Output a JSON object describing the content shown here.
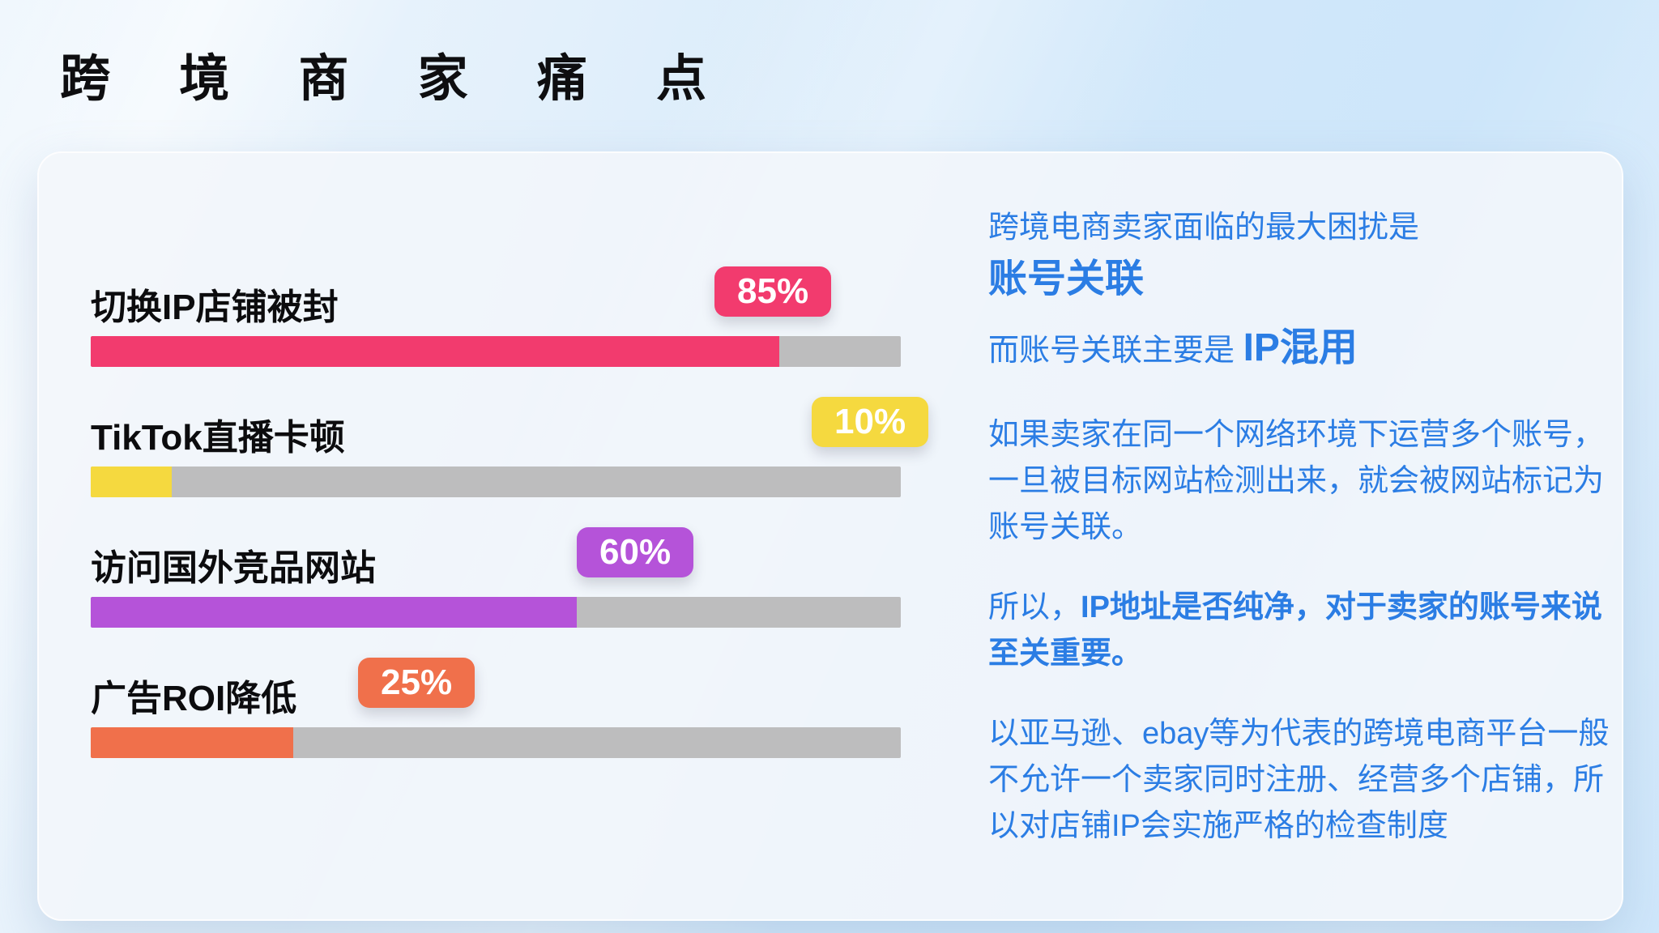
{
  "page": {
    "title": "跨 境 商 家 痛 点"
  },
  "chart_data": {
    "type": "bar",
    "orientation": "horizontal",
    "title": "",
    "xlabel": "",
    "ylabel": "",
    "xlim": [
      0,
      100
    ],
    "grid": false,
    "legend": false,
    "categories": [
      "切换IP店铺被封",
      "TikTok直播卡顿",
      "访问国外竞品网站",
      "广告ROI降低"
    ],
    "values": [
      85,
      10,
      60,
      25
    ],
    "value_labels": [
      "85%",
      "10%",
      "60%",
      "25%"
    ],
    "colors": [
      "#F23B6E",
      "#F5D93F",
      "#B553D9",
      "#F0704B"
    ],
    "badge_left_pct": [
      77,
      89,
      60,
      33
    ],
    "track_color": "#BDBDBE"
  },
  "panel": {
    "text_color": "#2B7DE4",
    "intro_line": "跨境电商卖家面临的最大困扰是",
    "headline": "账号关联",
    "subline_prefix": "而账号关联主要是 ",
    "subline_emphasis": "IP混用",
    "para1": "如果卖家在同一个网络环境下运营多个账号，一旦被目标网站检测出来，就会被网站标记为账号关联。",
    "para2_prefix": "所以，",
    "para2_bold": "IP地址是否纯净，对于卖家的账号来说至关重要。",
    "para3": "以亚马逊、ebay等为代表的跨境电商平台一般不允许一个卖家同时注册、经营多个店铺，所以对店铺IP会实施严格的检查制度"
  },
  "colors": {
    "page_background_start": "#F0F7FD",
    "page_background_end": "#CFE7FB",
    "card_background": "#F2F6FB",
    "title_color": "#0E0E10",
    "bar_label_color": "#0C0C0E"
  }
}
